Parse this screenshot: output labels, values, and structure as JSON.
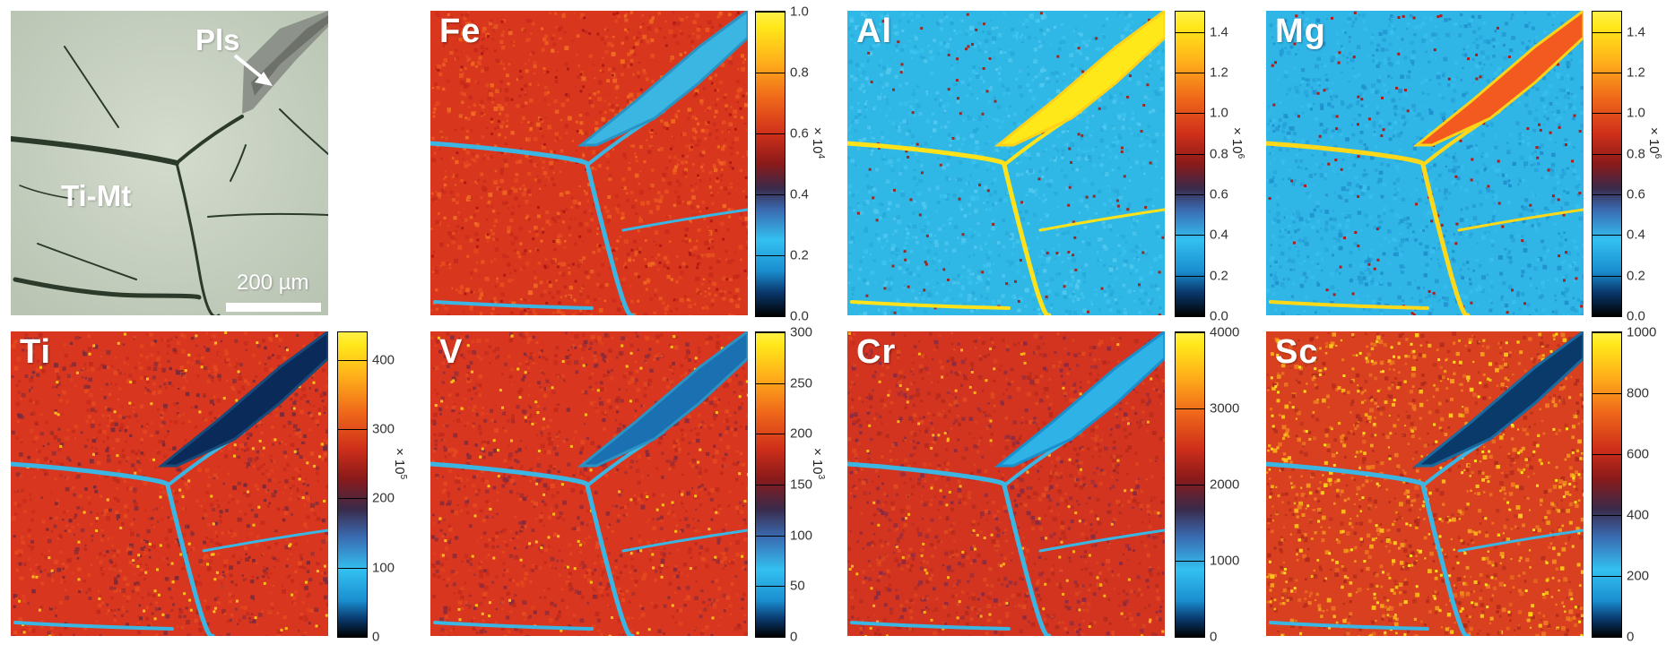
{
  "photo": {
    "labels": {
      "pls": "Pls",
      "ti_mt": "Ti-Mt"
    },
    "scale_bar": "200  µm"
  },
  "maps": [
    {
      "element": "Fe",
      "unit_base": "× 10",
      "unit_exp": "4",
      "ticks": [
        "1.0",
        "0.8",
        "0.6",
        "0.4",
        "0.2",
        "0.0"
      ],
      "max": 1.0
    },
    {
      "element": "Al",
      "unit_base": "× 10",
      "unit_exp": "6",
      "ticks": [
        "1.4",
        "1.2",
        "1.0",
        "0.8",
        "0.6",
        "0.4",
        "0.2",
        "0.0"
      ],
      "max": 1.5
    },
    {
      "element": "Mg",
      "unit_base": "× 10",
      "unit_exp": "6",
      "ticks": [
        "1.4",
        "1.2",
        "1.0",
        "0.8",
        "0.6",
        "0.4",
        "0.2",
        "0.0"
      ],
      "max": 1.5
    },
    {
      "element": "Ti",
      "unit_base": "× 10",
      "unit_exp": "5",
      "ticks": [
        "400",
        "300",
        "200",
        "100",
        "0"
      ],
      "max": 440
    },
    {
      "element": "V",
      "unit_base": "× 10",
      "unit_exp": "3",
      "ticks": [
        "300",
        "250",
        "200",
        "150",
        "100",
        "50",
        "0"
      ],
      "max": 300
    },
    {
      "element": "Cr",
      "unit_base": "",
      "unit_exp": "",
      "ticks": [
        "4000",
        "3000",
        "2000",
        "1000",
        "0"
      ],
      "max": 4000
    },
    {
      "element": "Sc",
      "unit_base": "",
      "unit_exp": "",
      "ticks": [
        "1000",
        "800",
        "600",
        "400",
        "200",
        "0"
      ],
      "max": 1000
    }
  ],
  "colors": {
    "photo_bg": "#c9d2c4",
    "crack": "#2a3a2a",
    "red_map": "#d8361f",
    "blue_map": "#27b6e8",
    "yellow": "#ffe21a"
  }
}
